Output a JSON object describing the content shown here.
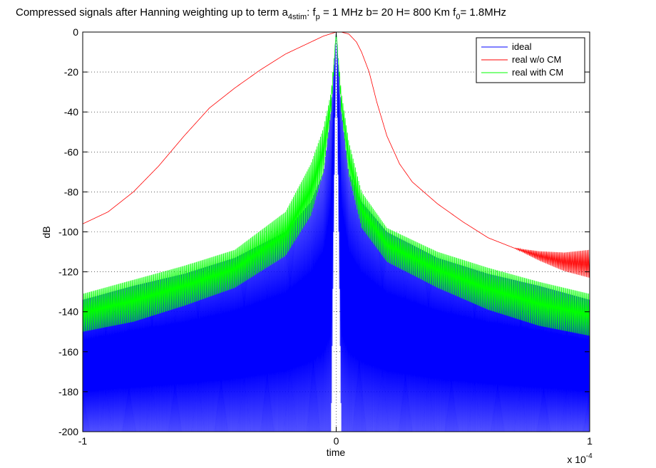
{
  "chart_data": {
    "type": "line",
    "title": {
      "prefix": "Compressed signals after Hanning weighting up to term a",
      "prefix_sub": "4stim",
      "mid1": ": f",
      "mid1_sub": "p",
      "mid2": " = 1 MHz   b= 20 H= 800 Km  f",
      "mid2_sub": "0",
      "suffix": "= 1.8MHz"
    },
    "xlabel": "time",
    "ylabel": "dB",
    "x_multiplier": {
      "base": "x 10",
      "exponent": "-4"
    },
    "xlim": [
      -1,
      1
    ],
    "ylim": [
      -200,
      0
    ],
    "x_ticks": [
      -1,
      0,
      1
    ],
    "x_tick_labels": [
      "-1",
      "0",
      "1"
    ],
    "y_ticks": [
      0,
      -20,
      -40,
      -60,
      -80,
      -100,
      -120,
      -140,
      -160,
      -180,
      -200
    ],
    "y_tick_labels": [
      "0",
      "-20",
      "-40",
      "-60",
      "-80",
      "-100",
      "-120",
      "-140",
      "-160",
      "-180",
      "-200"
    ],
    "grid": true,
    "legend_position": "top-right",
    "series": [
      {
        "name": "ideal",
        "color": "#0000ff",
        "x": [
          -1,
          -0.8,
          -0.6,
          -0.4,
          -0.2,
          -0.1,
          -0.05,
          -0.02,
          0,
          0.02,
          0.05,
          0.1,
          0.2,
          0.4,
          0.6,
          0.8,
          1
        ],
        "upper": [
          -134,
          -127,
          -121,
          -113,
          -100,
          -85,
          -70,
          -38,
          0,
          -38,
          -70,
          -85,
          -100,
          -113,
          -121,
          -127,
          -134
        ],
        "lower": [
          -200,
          -200,
          -200,
          -200,
          -200,
          -200,
          -200,
          -200,
          0,
          -200,
          -200,
          -200,
          -200,
          -200,
          -200,
          -200,
          -200
        ]
      },
      {
        "name": "real w/o CM",
        "color": "#ff0000",
        "x": [
          -1,
          -0.9,
          -0.8,
          -0.7,
          -0.6,
          -0.5,
          -0.4,
          -0.3,
          -0.2,
          -0.1,
          -0.05,
          0,
          0.02,
          0.05,
          0.08,
          0.1,
          0.13,
          0.16,
          0.2,
          0.25,
          0.3,
          0.4,
          0.5,
          0.6,
          0.7,
          0.8,
          0.9,
          1
        ],
        "y": [
          -96,
          -90,
          -80,
          -67,
          -52,
          -38,
          -28,
          -19,
          -11,
          -5,
          -2,
          0,
          0,
          -1,
          -5,
          -10,
          -20,
          -35,
          -52,
          -66,
          -75,
          -86,
          -95,
          -103,
          -108,
          -112,
          -115,
          -116
        ]
      },
      {
        "name": "real with CM",
        "color": "#00ff00",
        "x": [
          -1,
          -0.8,
          -0.6,
          -0.4,
          -0.2,
          -0.1,
          -0.05,
          -0.02,
          0,
          0.02,
          0.05,
          0.1,
          0.2,
          0.4,
          0.6,
          0.8,
          1
        ],
        "upper": [
          -131,
          -124,
          -117,
          -109,
          -90,
          -66,
          -48,
          -30,
          0,
          -30,
          -55,
          -80,
          -98,
          -110,
          -118,
          -125,
          -131
        ],
        "lower": [
          -150,
          -145,
          -137,
          -128,
          -112,
          -92,
          -70,
          -40,
          0,
          -40,
          -72,
          -98,
          -115,
          -128,
          -139,
          -147,
          -152
        ]
      }
    ]
  }
}
